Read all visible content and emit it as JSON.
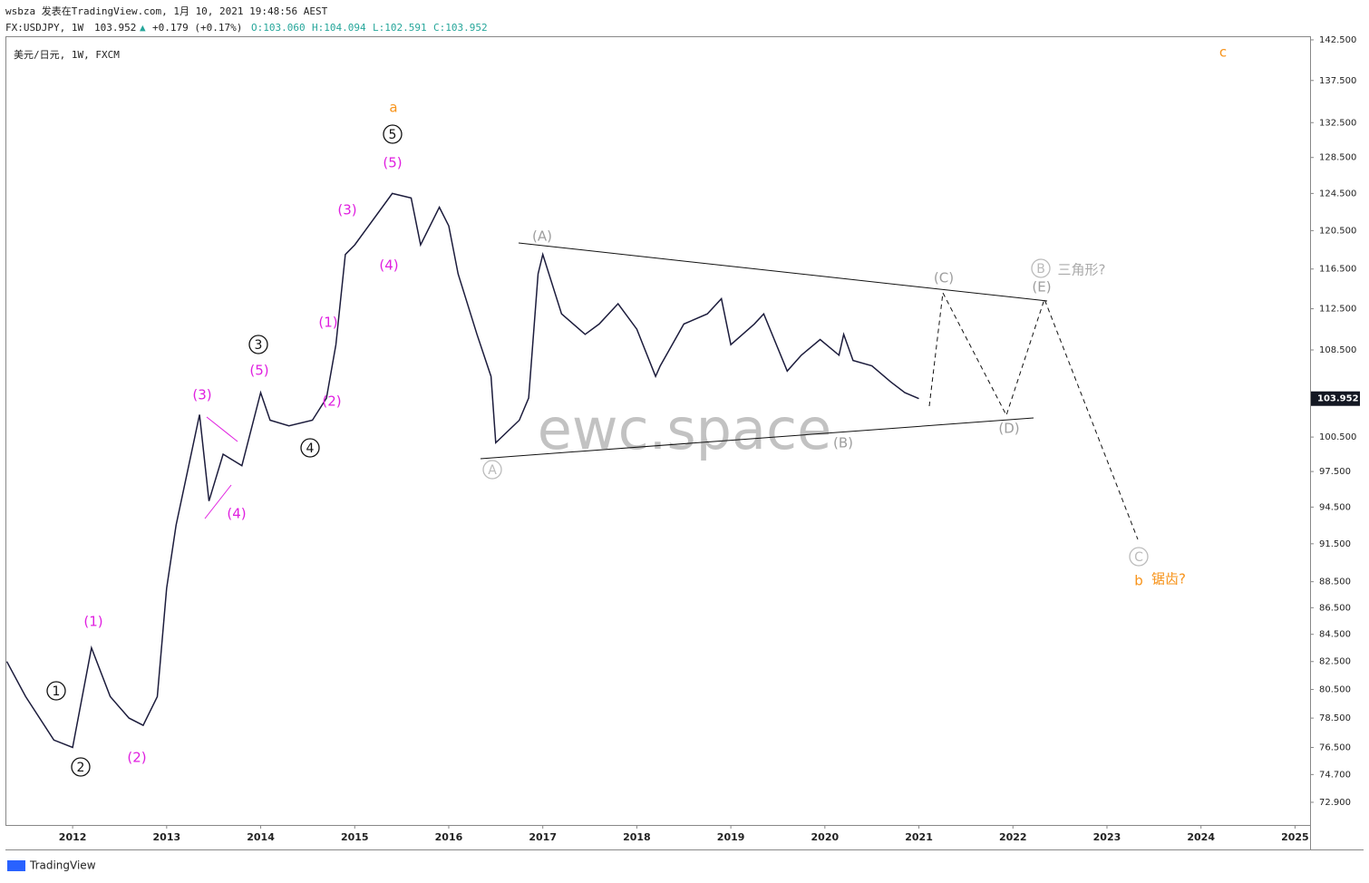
{
  "header": {
    "publisher": "wsbza 发表在TradingView.com, 1月 10, 2021 19:48:56 AEST",
    "symbol": "FX:USDJPY, 1W",
    "last": "103.952",
    "arrow": "▲",
    "change": "+0.179 (+0.17%)",
    "ohlc": [
      "O:103.060",
      "H:104.094",
      "L:102.591",
      "C:103.952"
    ]
  },
  "chart_data": {
    "type": "line",
    "title": "美元/日元, 1W, FXCM",
    "watermark": "ewc.space",
    "color": "#1c1c3c",
    "log_scale": true,
    "grid": false,
    "x": [
      2011.3,
      2011.5,
      2011.8,
      2012.0,
      2012.2,
      2012.4,
      2012.6,
      2012.75,
      2012.9,
      2013.0,
      2013.1,
      2013.35,
      2013.45,
      2013.6,
      2013.8,
      2014.0,
      2014.1,
      2014.3,
      2014.55,
      2014.7,
      2014.8,
      2014.9,
      2015.0,
      2015.4,
      2015.6,
      2015.7,
      2015.9,
      2016.0,
      2016.1,
      2016.3,
      2016.45,
      2016.5,
      2016.75,
      2016.85,
      2016.95,
      2017.0,
      2017.2,
      2017.45,
      2017.6,
      2017.8,
      2018.0,
      2018.2,
      2018.25,
      2018.5,
      2018.75,
      2018.9,
      2019.0,
      2019.25,
      2019.35,
      2019.6,
      2019.75,
      2019.95,
      2020.15,
      2020.2,
      2020.3,
      2020.5,
      2020.7,
      2020.85,
      2021.0
    ],
    "values": [
      82.5,
      80,
      77,
      76.5,
      83.5,
      80,
      78.5,
      78,
      80,
      88,
      93,
      102.5,
      95,
      99,
      98,
      104.5,
      102,
      101.5,
      102,
      104,
      109,
      118,
      119,
      124.5,
      124,
      119,
      123,
      121,
      116,
      110,
      106,
      100,
      102,
      104,
      116,
      118,
      112,
      110,
      111,
      113,
      110.5,
      106,
      107,
      111,
      112,
      113.5,
      109,
      111,
      112,
      106.5,
      108,
      109.5,
      108,
      110,
      107.5,
      107,
      105.5,
      104.5,
      103.95
    ],
    "xlim": [
      2011.295,
      2025.16
    ],
    "xticks": [
      2012,
      2013,
      2014,
      2015,
      2016,
      2017,
      2018,
      2019,
      2020,
      2021,
      2022,
      2023,
      2024,
      2025
    ],
    "ylim": [
      71.46,
      142.95
    ],
    "yticks": [
      {
        "value": 142.5,
        "label": "142.500"
      },
      {
        "value": 137.5,
        "label": "137.500"
      },
      {
        "value": 132.5,
        "label": "132.500"
      },
      {
        "value": 128.5,
        "label": "128.500"
      },
      {
        "value": 124.5,
        "label": "124.500"
      },
      {
        "value": 120.5,
        "label": "120.500"
      },
      {
        "value": 116.5,
        "label": "116.500"
      },
      {
        "value": 112.5,
        "label": "112.500"
      },
      {
        "value": 108.5,
        "label": "108.500"
      },
      {
        "value": 100.5,
        "label": "100.500"
      },
      {
        "value": 97.5,
        "label": "97.500"
      },
      {
        "value": 94.5,
        "label": "94.500"
      },
      {
        "value": 91.5,
        "label": "91.500"
      },
      {
        "value": 88.5,
        "label": "88.500"
      },
      {
        "value": 86.5,
        "label": "86.500"
      },
      {
        "value": 84.5,
        "label": "84.500"
      },
      {
        "value": 82.5,
        "label": "82.500"
      },
      {
        "value": 80.5,
        "label": "80.500"
      },
      {
        "value": 78.5,
        "label": "78.500"
      },
      {
        "value": 76.5,
        "label": "76.500"
      },
      {
        "value": 74.7,
        "label": "74.700"
      },
      {
        "value": 72.9,
        "label": "72.900"
      }
    ],
    "price_tag": {
      "value": 103.952,
      "label": "103.952"
    },
    "annotations": [
      "a",
      "5",
      "(5)",
      "(3)",
      "(4)",
      "(1)",
      "(2)",
      "3",
      "(5)",
      "4",
      "(3)",
      "(4)",
      "(1)",
      "(2)",
      "1",
      "2",
      "(A)",
      "A",
      "(B)",
      "(C)",
      "(D)",
      "(E)",
      "B",
      "三角形?",
      "C",
      "b",
      "锯齿?",
      "c"
    ]
  },
  "footer": {
    "brand": "TradingView"
  }
}
